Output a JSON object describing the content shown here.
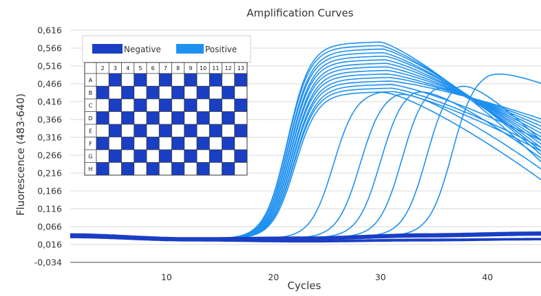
{
  "chart_data": {
    "type": "line",
    "title": "Amplification Curves",
    "xlabel": "Cycles",
    "ylabel": "Fluorescence (483-640)",
    "xlim": [
      1,
      45
    ],
    "ylim": [
      -0.034,
      0.616
    ],
    "x_ticks": [
      10,
      20,
      30,
      40
    ],
    "y_ticks": [
      "0,616",
      "0,566",
      "0,516",
      "0,466",
      "0,416",
      "0,366",
      "0,316",
      "0,266",
      "0,216",
      "0,166",
      "0,116",
      "0,066",
      "0,016",
      "-0,034"
    ],
    "y_tick_values": [
      0.616,
      0.566,
      0.516,
      0.466,
      0.416,
      0.366,
      0.316,
      0.266,
      0.216,
      0.166,
      0.116,
      0.066,
      0.016,
      -0.034
    ],
    "grid": "horizontal",
    "colors": {
      "negative": "#1a3fc4",
      "positive": "#1e90f0"
    },
    "legend": {
      "placement": "top-left",
      "entries": [
        {
          "name": "Negative",
          "color": "#1a3fc4"
        },
        {
          "name": "Positive",
          "color": "#1e90f0"
        }
      ]
    },
    "plate": {
      "columns": [
        "2",
        "3",
        "4",
        "5",
        "6",
        "7",
        "8",
        "9",
        "10",
        "11",
        "12",
        "13"
      ],
      "rows": [
        "A",
        "B",
        "C",
        "D",
        "E",
        "F",
        "G",
        "H"
      ]
    },
    "series": [
      {
        "group": "Positive",
        "ct": 19.5,
        "peak": 0.585,
        "peak_cycle": 30.0,
        "end": 0.24
      },
      {
        "group": "Positive",
        "ct": 19.5,
        "peak": 0.575,
        "peak_cycle": 30.0,
        "end": 0.26
      },
      {
        "group": "Positive",
        "ct": 19.6,
        "peak": 0.565,
        "peak_cycle": 30.2,
        "end": 0.27
      },
      {
        "group": "Positive",
        "ct": 19.6,
        "peak": 0.555,
        "peak_cycle": 30.2,
        "end": 0.28
      },
      {
        "group": "Positive",
        "ct": 19.7,
        "peak": 0.545,
        "peak_cycle": 30.4,
        "end": 0.29
      },
      {
        "group": "Positive",
        "ct": 19.7,
        "peak": 0.535,
        "peak_cycle": 30.4,
        "end": 0.3
      },
      {
        "group": "Positive",
        "ct": 19.8,
        "peak": 0.525,
        "peak_cycle": 30.5,
        "end": 0.31
      },
      {
        "group": "Positive",
        "ct": 19.8,
        "peak": 0.515,
        "peak_cycle": 30.5,
        "end": 0.32
      },
      {
        "group": "Positive",
        "ct": 19.9,
        "peak": 0.505,
        "peak_cycle": 30.6,
        "end": 0.33
      },
      {
        "group": "Positive",
        "ct": 19.9,
        "peak": 0.495,
        "peak_cycle": 30.6,
        "end": 0.34
      },
      {
        "group": "Positive",
        "ct": 20.0,
        "peak": 0.485,
        "peak_cycle": 30.8,
        "end": 0.35
      },
      {
        "group": "Positive",
        "ct": 20.0,
        "peak": 0.475,
        "peak_cycle": 30.8,
        "end": 0.36
      },
      {
        "group": "Positive",
        "ct": 20.1,
        "peak": 0.465,
        "peak_cycle": 31.0,
        "end": 0.3
      },
      {
        "group": "Positive",
        "ct": 20.1,
        "peak": 0.455,
        "peak_cycle": 31.0,
        "end": 0.28
      },
      {
        "group": "Positive",
        "ct": 20.2,
        "peak": 0.445,
        "peak_cycle": 31.2,
        "end": 0.27
      },
      {
        "group": "Positive",
        "ct": 23.8,
        "peak": 0.45,
        "peak_cycle": 30.0,
        "end": 0.19
      },
      {
        "group": "Positive",
        "ct": 26.3,
        "peak": 0.45,
        "peak_cycle": 31.5,
        "end": 0.22
      },
      {
        "group": "Positive",
        "ct": 28.2,
        "peak": 0.46,
        "peak_cycle": 33.0,
        "end": 0.25
      },
      {
        "group": "Positive",
        "ct": 30.2,
        "peak": 0.47,
        "peak_cycle": 35.0,
        "end": 0.27
      },
      {
        "group": "Positive",
        "ct": 32.5,
        "peak": 0.48,
        "peak_cycle": 37.0,
        "end": 0.3
      },
      {
        "group": "Positive",
        "ct": 34.9,
        "peak": 0.5,
        "peak_cycle": 40.0,
        "end": 0.46
      },
      {
        "group": "Negative",
        "baseline": 0.04,
        "trend": [
          0.045,
          0.034,
          0.036,
          0.045,
          0.05
        ]
      },
      {
        "group": "Negative",
        "baseline": 0.04,
        "trend": [
          0.042,
          0.032,
          0.034,
          0.042,
          0.047
        ]
      },
      {
        "group": "Negative",
        "baseline": 0.038,
        "trend": [
          0.04,
          0.03,
          0.03,
          0.038,
          0.043
        ]
      },
      {
        "group": "Negative",
        "baseline": 0.036,
        "trend": [
          0.038,
          0.028,
          0.026,
          0.03,
          0.032
        ]
      },
      {
        "group": "Negative",
        "baseline": 0.036,
        "trend": [
          0.036,
          0.027,
          0.024,
          0.027,
          0.03
        ]
      }
    ]
  }
}
